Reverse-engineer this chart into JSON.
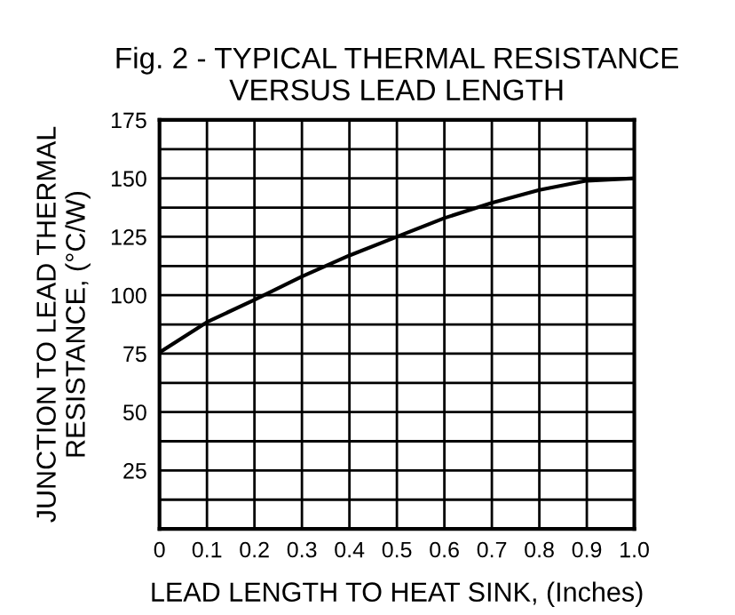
{
  "chart_data": {
    "type": "line",
    "title": "Fig. 2 - TYPICAL THERMAL RESISTANCE\nVERSUS LEAD LENGTH",
    "xlabel": "LEAD LENGTH TO HEAT SINK, (Inches)",
    "ylabel": "JUNCTION TO LEAD THERMAL\nRESISTANCE, (°C/W)",
    "x": [
      0,
      0.1,
      0.2,
      0.3,
      0.4,
      0.5,
      0.6,
      0.7,
      0.8,
      0.9,
      1.0
    ],
    "series": [
      {
        "color": "#000000",
        "values": [
          75.5,
          88.5,
          98,
          108,
          117,
          125,
          133,
          139.5,
          145,
          149,
          150
        ]
      }
    ],
    "xlim": [
      0,
      1.0
    ],
    "xticks": [
      0,
      0.1,
      0.2,
      0.3,
      0.4,
      0.5,
      0.6,
      0.7,
      0.8,
      0.9,
      {
        "value": 1.0,
        "label": "1.0"
      }
    ],
    "ylim": [
      0,
      175
    ],
    "yticks": [
      {
        "value": 0,
        "label": null
      },
      {
        "value": 12.5,
        "label": null
      },
      25,
      {
        "value": 37.5,
        "label": null
      },
      50,
      {
        "value": 62.5,
        "label": null
      },
      75,
      {
        "value": 87.5,
        "label": null
      },
      100,
      {
        "value": 112.5,
        "label": null
      },
      125,
      {
        "value": 137.5,
        "label": null
      },
      150,
      {
        "value": 162.5,
        "label": null
      },
      175
    ],
    "grid": true,
    "marker": "none",
    "line_style": "solid",
    "legend": false
  }
}
